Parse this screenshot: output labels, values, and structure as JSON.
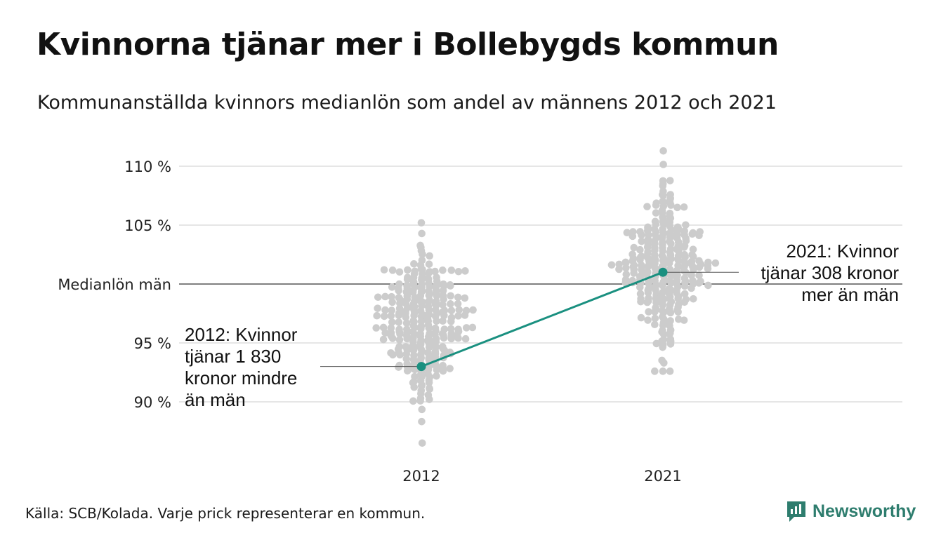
{
  "title": "Kvinnorna tjänar mer i Bollebygds kommun",
  "subtitle": "Kommunanställda kvinnors medianlön som andel av männens 2012 och 2021",
  "source": "Källa: SCB/Kolada. Varje prick representerar en kommun.",
  "brand": {
    "name": "Newsworthy",
    "logo_icon": "newsworthy-logo-icon",
    "color": "#2e7d6e"
  },
  "colors": {
    "dots": "#cccccc",
    "highlight": "#1a9080",
    "grid": "#e6e6e6",
    "reference": "#333333"
  },
  "chart_data": {
    "type": "scatter",
    "variant": "beeswarm",
    "x_categories": [
      "2012",
      "2021"
    ],
    "ylim": [
      85,
      112
    ],
    "y_ticks": [
      {
        "value": 90,
        "label": "90 %"
      },
      {
        "value": 95,
        "label": "95 %"
      },
      {
        "value": 100,
        "label": "Medianlön män"
      },
      {
        "value": 105,
        "label": "105 %"
      },
      {
        "value": 110,
        "label": "110 %"
      }
    ],
    "grid": true,
    "reference_line": {
      "value": 100,
      "label": "Medianlön män"
    },
    "series": [
      {
        "category": "2012",
        "approx_count": 290,
        "min": 86.5,
        "max": 105.2,
        "median": 96.5
      },
      {
        "category": "2021",
        "approx_count": 290,
        "min": 92.6,
        "max": 111.3,
        "median": 101.5
      }
    ],
    "highlight": {
      "name": "Bollebygd",
      "points": [
        {
          "x": "2012",
          "y": 93.0
        },
        {
          "x": "2021",
          "y": 101.0
        }
      ],
      "annotations": [
        {
          "x": "2012",
          "lines": [
            "2012: Kvinnor",
            "tjänar 1 830",
            "kronor mindre",
            "än män"
          ]
        },
        {
          "x": "2021",
          "lines": [
            "2021: Kvinnor",
            "tjänar 308 kronor",
            "mer än män"
          ]
        }
      ]
    }
  }
}
